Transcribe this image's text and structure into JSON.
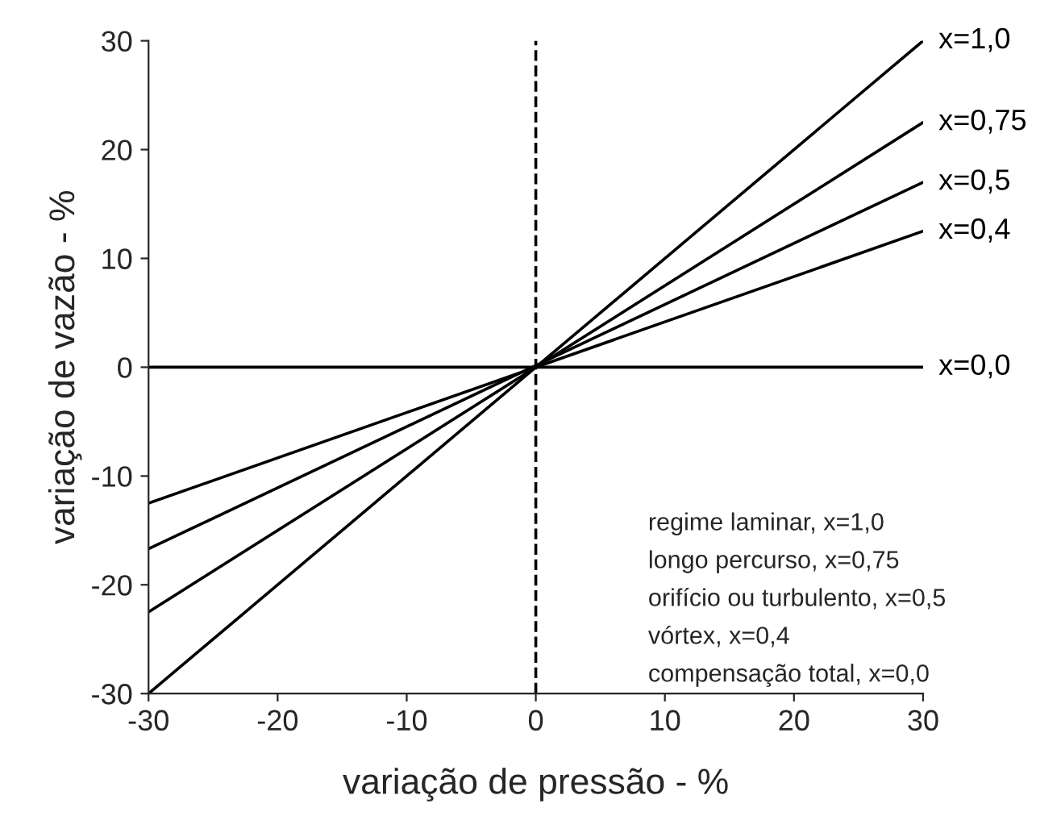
{
  "chart_data": {
    "type": "line",
    "xlabel": "variação de pressão - %",
    "ylabel": "variação de vazão - %",
    "x": [
      -30,
      30
    ],
    "series": [
      {
        "name": "x=1,0",
        "color": "#000000",
        "values": [
          -30,
          30
        ]
      },
      {
        "name": "x=0,75",
        "color": "#000000",
        "values": [
          -22.5,
          22.5
        ]
      },
      {
        "name": "x=0,5",
        "color": "#000000",
        "values": [
          -16.7,
          17
        ]
      },
      {
        "name": "x=0,4",
        "color": "#000000",
        "values": [
          -12.5,
          12.5
        ]
      },
      {
        "name": "x=0,0",
        "color": "#000000",
        "values": [
          0,
          0
        ]
      }
    ],
    "xlim": [
      -30,
      30
    ],
    "ylim": [
      -30,
      30
    ],
    "xticks": [
      {
        "value": -30,
        "label": "-30"
      },
      {
        "value": -20,
        "label": "-20"
      },
      {
        "value": -10,
        "label": "-10"
      },
      0,
      10,
      20,
      30
    ],
    "yticks": [
      {
        "value": -30,
        "label": "-30"
      },
      {
        "value": -20,
        "label": "-20"
      },
      {
        "value": -10,
        "label": "-10"
      },
      0,
      10,
      20,
      30
    ],
    "ref_lines": [
      {
        "axis": "x",
        "value": 0,
        "line_style": "dashed",
        "color": "#000000"
      }
    ],
    "annotations": [
      "regime laminar, x=1,0",
      "longo percurso, x=0,75",
      "orifício ou turbulento, x=0,5",
      "vórtex, x=0,4",
      "compensação total, x=0,0"
    ],
    "grid": false,
    "legend": false,
    "marker": "none",
    "line_style": "solid"
  }
}
